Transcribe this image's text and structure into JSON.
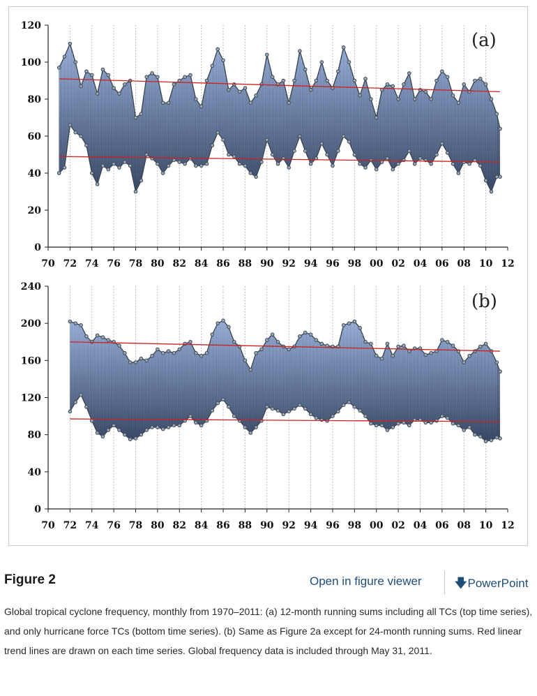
{
  "figure": {
    "title": "Figure 2",
    "open_viewer_label": "Open in figure viewer",
    "powerpoint_label": "PowerPoint",
    "caption": "Global tropical cyclone frequency, monthly from 1970–2011: (a) 12-month running sums including all TCs (top time series), and only hurricane force TCs (bottom time series). (b) Same as Figure 2a except for 24-month running sums. Red linear trend lines are drawn on each time series. Global frequency data is included through May 31, 2011."
  },
  "colors": {
    "fill_top": "#aac4f0",
    "fill_bottom": "#3a4a68",
    "marker": "#3d4855",
    "trend": "#cc2222",
    "grid": "#999999"
  },
  "chart_data": [
    {
      "type": "area",
      "panel_label": "(a)",
      "xlim": [
        70,
        112
      ],
      "x_tick_labels": [
        "70",
        "72",
        "74",
        "76",
        "78",
        "80",
        "82",
        "84",
        "86",
        "88",
        "90",
        "92",
        "94",
        "96",
        "98",
        "00",
        "02",
        "04",
        "06",
        "08",
        "10",
        "12"
      ],
      "ylim": [
        0,
        120
      ],
      "y_ticks": [
        0,
        20,
        40,
        60,
        80,
        100,
        120
      ],
      "grid": "vertical dotted",
      "series": [
        {
          "role": "upper",
          "x": [
            71,
            71.5,
            72,
            72.5,
            73,
            73.5,
            74,
            74.5,
            75,
            75.5,
            76,
            76.5,
            77,
            77.5,
            78,
            78.5,
            79,
            79.5,
            80,
            80.5,
            81,
            81.5,
            82,
            82.5,
            83,
            83.5,
            84,
            84.5,
            85,
            85.5,
            86,
            86.5,
            87,
            87.5,
            88,
            88.5,
            89,
            89.5,
            90,
            90.5,
            91,
            91.5,
            92,
            92.5,
            93,
            93.5,
            94,
            94.5,
            95,
            95.5,
            96,
            96.5,
            97,
            97.5,
            98,
            98.5,
            99,
            99.5,
            100,
            100.5,
            101,
            101.5,
            102,
            102.5,
            103,
            103.5,
            104,
            104.5,
            105,
            105.5,
            106,
            106.5,
            107,
            107.5,
            108,
            108.5,
            109,
            109.5,
            110,
            110.5,
            111,
            111.3
          ],
          "y": [
            97,
            103,
            110,
            100,
            87,
            95,
            93,
            83,
            96,
            93,
            86,
            83,
            88,
            90,
            70,
            72,
            92,
            94,
            92,
            78,
            78,
            88,
            90,
            92,
            93,
            80,
            76,
            90,
            98,
            107,
            101,
            85,
            88,
            84,
            86,
            78,
            82,
            88,
            104,
            92,
            88,
            90,
            78,
            90,
            106,
            96,
            85,
            90,
            100,
            90,
            86,
            95,
            108,
            100,
            90,
            82,
            91,
            80,
            70,
            85,
            88,
            87,
            80,
            88,
            94,
            80,
            85,
            84,
            80,
            90,
            95,
            92,
            82,
            78,
            88,
            84,
            90,
            91,
            88,
            80,
            72,
            64
          ]
        },
        {
          "role": "lower",
          "x": [
            71,
            71.5,
            72,
            72.5,
            73,
            73.5,
            74,
            74.5,
            75,
            75.5,
            76,
            76.5,
            77,
            77.5,
            78,
            78.5,
            79,
            79.5,
            80,
            80.5,
            81,
            81.5,
            82,
            82.5,
            83,
            83.5,
            84,
            84.5,
            85,
            85.5,
            86,
            86.5,
            87,
            87.5,
            88,
            88.5,
            89,
            89.5,
            90,
            90.5,
            91,
            91.5,
            92,
            92.5,
            93,
            93.5,
            94,
            94.5,
            95,
            95.5,
            96,
            96.5,
            97,
            97.5,
            98,
            98.5,
            99,
            99.5,
            100,
            100.5,
            101,
            101.5,
            102,
            102.5,
            103,
            103.5,
            104,
            104.5,
            105,
            105.5,
            106,
            106.5,
            107,
            107.5,
            108,
            108.5,
            109,
            109.5,
            110,
            110.5,
            111,
            111.3
          ],
          "y": [
            40,
            43,
            66,
            62,
            60,
            55,
            40,
            34,
            44,
            42,
            45,
            43,
            46,
            44,
            30,
            36,
            50,
            48,
            45,
            40,
            44,
            47,
            46,
            45,
            48,
            44,
            44,
            45,
            55,
            62,
            58,
            50,
            49,
            45,
            44,
            40,
            38,
            46,
            58,
            50,
            45,
            48,
            43,
            52,
            60,
            52,
            45,
            48,
            56,
            50,
            44,
            52,
            60,
            57,
            50,
            45,
            43,
            47,
            42,
            46,
            48,
            42,
            45,
            47,
            52,
            45,
            48,
            47,
            45,
            50,
            56,
            51,
            45,
            40,
            46,
            45,
            47,
            44,
            36,
            30,
            38,
            38
          ]
        },
        {
          "role": "trend-upper",
          "x": [
            71,
            111.3
          ],
          "y": [
            91,
            84
          ]
        },
        {
          "role": "trend-lower",
          "x": [
            71,
            111.3
          ],
          "y": [
            49,
            46
          ]
        }
      ]
    },
    {
      "type": "area",
      "panel_label": "(b)",
      "xlim": [
        70,
        112
      ],
      "x_tick_labels": [
        "70",
        "72",
        "74",
        "76",
        "78",
        "80",
        "82",
        "84",
        "86",
        "88",
        "90",
        "92",
        "94",
        "96",
        "98",
        "00",
        "02",
        "04",
        "06",
        "08",
        "10",
        "12"
      ],
      "ylim": [
        0,
        240
      ],
      "y_ticks": [
        0,
        40,
        80,
        120,
        160,
        200,
        240
      ],
      "grid": "vertical dotted",
      "series": [
        {
          "role": "upper",
          "x": [
            72,
            72.5,
            73,
            73.5,
            74,
            74.5,
            75,
            75.5,
            76,
            76.5,
            77,
            77.5,
            78,
            78.5,
            79,
            79.5,
            80,
            80.5,
            81,
            81.5,
            82,
            82.5,
            83,
            83.5,
            84,
            84.5,
            85,
            85.5,
            86,
            86.5,
            87,
            87.5,
            88,
            88.5,
            89,
            89.5,
            90,
            90.5,
            91,
            91.5,
            92,
            92.5,
            93,
            93.5,
            94,
            94.5,
            95,
            95.5,
            96,
            96.5,
            97,
            97.5,
            98,
            98.5,
            99,
            99.5,
            100,
            100.5,
            101,
            101.5,
            102,
            102.5,
            103,
            103.5,
            104,
            104.5,
            105,
            105.5,
            106,
            106.5,
            107,
            107.5,
            108,
            108.5,
            109,
            109.5,
            110,
            110.5,
            111,
            111.3
          ],
          "y": [
            202,
            200,
            198,
            186,
            180,
            187,
            185,
            182,
            180,
            176,
            168,
            158,
            158,
            162,
            160,
            165,
            172,
            168,
            170,
            168,
            172,
            178,
            180,
            168,
            165,
            168,
            188,
            200,
            203,
            196,
            180,
            175,
            160,
            150,
            168,
            172,
            182,
            188,
            180,
            175,
            172,
            175,
            186,
            190,
            188,
            182,
            178,
            176,
            175,
            175,
            198,
            200,
            202,
            195,
            180,
            178,
            165,
            162,
            178,
            165,
            175,
            176,
            170,
            173,
            173,
            166,
            168,
            170,
            182,
            180,
            176,
            170,
            158,
            165,
            170,
            175,
            178,
            170,
            158,
            148
          ]
        },
        {
          "role": "lower",
          "x": [
            72,
            72.5,
            73,
            73.5,
            74,
            74.5,
            75,
            75.5,
            76,
            76.5,
            77,
            77.5,
            78,
            78.5,
            79,
            79.5,
            80,
            80.5,
            81,
            81.5,
            82,
            82.5,
            83,
            83.5,
            84,
            84.5,
            85,
            85.5,
            86,
            86.5,
            87,
            87.5,
            88,
            88.5,
            89,
            89.5,
            90,
            90.5,
            91,
            91.5,
            92,
            92.5,
            93,
            93.5,
            94,
            94.5,
            95,
            95.5,
            96,
            96.5,
            97,
            97.5,
            98,
            98.5,
            99,
            99.5,
            100,
            100.5,
            101,
            101.5,
            102,
            102.5,
            103,
            103.5,
            104,
            104.5,
            105,
            105.5,
            106,
            106.5,
            107,
            107.5,
            108,
            108.5,
            109,
            109.5,
            110,
            110.5,
            111,
            111.3
          ],
          "y": [
            105,
            115,
            123,
            110,
            95,
            82,
            78,
            85,
            90,
            85,
            80,
            75,
            76,
            80,
            85,
            88,
            88,
            86,
            88,
            90,
            90,
            95,
            100,
            93,
            90,
            95,
            106,
            114,
            118,
            110,
            100,
            95,
            88,
            82,
            88,
            95,
            110,
            108,
            106,
            102,
            105,
            108,
            112,
            108,
            102,
            98,
            96,
            95,
            100,
            105,
            112,
            115,
            110,
            106,
            100,
            92,
            90,
            90,
            85,
            88,
            92,
            93,
            90,
            96,
            96,
            93,
            93,
            95,
            100,
            98,
            92,
            90,
            85,
            88,
            80,
            78,
            73,
            74,
            77,
            76
          ]
        },
        {
          "role": "trend-upper",
          "x": [
            72,
            111.3
          ],
          "y": [
            180,
            170
          ]
        },
        {
          "role": "trend-lower",
          "x": [
            72,
            111.3
          ],
          "y": [
            97,
            94
          ]
        }
      ]
    }
  ]
}
